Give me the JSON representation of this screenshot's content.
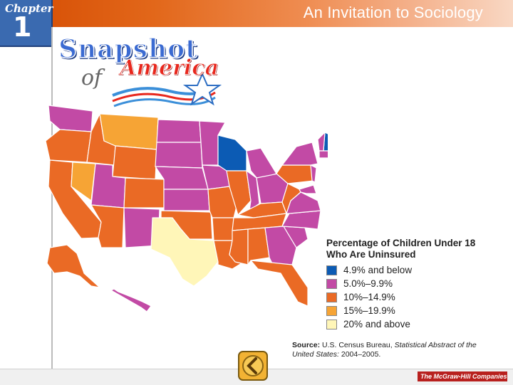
{
  "header": {
    "chapter_label": "Chapter",
    "chapter_number": "1",
    "book_title": "An Invitation to Sociology"
  },
  "logo": {
    "line1": "Snapshot",
    "line2": "of",
    "line3": "America"
  },
  "colors": {
    "blue": "#0c5bb4",
    "magenta": "#c24aa5",
    "orange": "#ea6a25",
    "light_orange": "#f6a435",
    "cream": "#fff6b8"
  },
  "map": {
    "regions": [
      {
        "name": "Washington",
        "category": "magenta"
      },
      {
        "name": "Oregon",
        "category": "orange"
      },
      {
        "name": "California",
        "category": "orange"
      },
      {
        "name": "Nevada",
        "category": "light_orange"
      },
      {
        "name": "Idaho",
        "category": "orange"
      },
      {
        "name": "Montana",
        "category": "light_orange"
      },
      {
        "name": "Wyoming",
        "category": "orange"
      },
      {
        "name": "Utah",
        "category": "magenta"
      },
      {
        "name": "Arizona",
        "category": "orange"
      },
      {
        "name": "Colorado",
        "category": "orange"
      },
      {
        "name": "New Mexico",
        "category": "magenta"
      },
      {
        "name": "North Dakota",
        "category": "magenta"
      },
      {
        "name": "South Dakota",
        "category": "magenta"
      },
      {
        "name": "Nebraska",
        "category": "magenta"
      },
      {
        "name": "Kansas",
        "category": "magenta"
      },
      {
        "name": "Oklahoma",
        "category": "orange"
      },
      {
        "name": "Texas",
        "category": "cream"
      },
      {
        "name": "Minnesota",
        "category": "magenta"
      },
      {
        "name": "Iowa",
        "category": "magenta"
      },
      {
        "name": "Missouri",
        "category": "orange"
      },
      {
        "name": "Arkansas",
        "category": "orange"
      },
      {
        "name": "Louisiana",
        "category": "orange"
      },
      {
        "name": "Wisconsin",
        "category": "blue"
      },
      {
        "name": "Illinois",
        "category": "orange"
      },
      {
        "name": "Michigan",
        "category": "magenta"
      },
      {
        "name": "Indiana",
        "category": "magenta"
      },
      {
        "name": "Ohio",
        "category": "magenta"
      },
      {
        "name": "Kentucky",
        "category": "orange"
      },
      {
        "name": "Tennessee",
        "category": "orange"
      },
      {
        "name": "Mississippi",
        "category": "orange"
      },
      {
        "name": "Alabama",
        "category": "orange"
      },
      {
        "name": "Georgia",
        "category": "magenta"
      },
      {
        "name": "Florida",
        "category": "orange"
      },
      {
        "name": "South Carolina",
        "category": "magenta"
      },
      {
        "name": "North Carolina",
        "category": "magenta"
      },
      {
        "name": "Virginia",
        "category": "magenta"
      },
      {
        "name": "West Virginia",
        "category": "orange"
      },
      {
        "name": "Pennsylvania",
        "category": "orange"
      },
      {
        "name": "New York",
        "category": "magenta"
      },
      {
        "name": "Maine",
        "category": "magenta"
      },
      {
        "name": "New Hampshire",
        "category": "blue"
      },
      {
        "name": "Vermont",
        "category": "magenta"
      },
      {
        "name": "Massachusetts",
        "category": "magenta"
      },
      {
        "name": "New Jersey",
        "category": "magenta"
      },
      {
        "name": "Maryland",
        "category": "magenta"
      },
      {
        "name": "Alaska",
        "category": "orange"
      },
      {
        "name": "Hawaii",
        "category": "magenta"
      }
    ]
  },
  "legend": {
    "title": "Percentage of Children Under 18 Who Are Uninsured",
    "items": [
      {
        "label": "4.9% and below",
        "category": "blue"
      },
      {
        "label": "5.0%–9.9%",
        "category": "magenta"
      },
      {
        "label": "10%–14.9%",
        "category": "orange"
      },
      {
        "label": "15%–19.9%",
        "category": "light_orange"
      },
      {
        "label": "20% and above",
        "category": "cream"
      }
    ]
  },
  "source": {
    "label": "Source:",
    "text": "U.S. Census Bureau,",
    "italic": "Statistical Abstract of the United States:",
    "years": "2004–2005."
  },
  "footer": {
    "publisher": "The McGraw-Hill Companies"
  }
}
